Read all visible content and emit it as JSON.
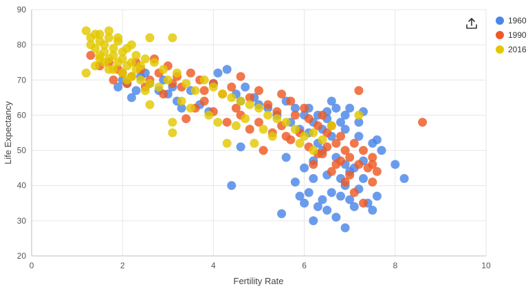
{
  "toolbar": {
    "export_icon": "share-upload-icon"
  },
  "chart_data": {
    "type": "scatter",
    "xlabel": "Fertility Rate",
    "ylabel": "Life Expectancy",
    "xlim": [
      0,
      10
    ],
    "ylim": [
      20,
      90
    ],
    "xticks": [
      "0",
      "2",
      "4",
      "6",
      "8",
      "10"
    ],
    "yticks": [
      "20",
      "30",
      "40",
      "50",
      "60",
      "70",
      "80",
      "90"
    ],
    "grid": true,
    "legend_position": "right",
    "series": [
      {
        "name": "1960",
        "color": "#4A86E8",
        "points": [
          [
            1.9,
            68
          ],
          [
            2.0,
            70
          ],
          [
            2.1,
            69
          ],
          [
            2.3,
            67
          ],
          [
            2.4,
            71
          ],
          [
            2.2,
            65
          ],
          [
            2.6,
            69
          ],
          [
            2.8,
            67
          ],
          [
            2.5,
            72
          ],
          [
            2.9,
            70
          ],
          [
            3.0,
            66
          ],
          [
            3.1,
            68
          ],
          [
            3.2,
            64
          ],
          [
            3.3,
            62
          ],
          [
            3.5,
            67
          ],
          [
            3.7,
            63
          ],
          [
            3.9,
            61
          ],
          [
            4.1,
            72
          ],
          [
            4.3,
            73
          ],
          [
            4.0,
            69
          ],
          [
            4.5,
            66
          ],
          [
            4.7,
            68
          ],
          [
            4.6,
            64
          ],
          [
            4.9,
            65
          ],
          [
            5.0,
            63
          ],
          [
            5.2,
            62
          ],
          [
            5.4,
            60
          ],
          [
            5.6,
            64
          ],
          [
            5.8,
            62
          ],
          [
            5.7,
            58
          ],
          [
            5.9,
            56
          ],
          [
            6.0,
            60
          ],
          [
            6.1,
            62
          ],
          [
            6.2,
            58
          ],
          [
            6.3,
            60
          ],
          [
            6.5,
            61
          ],
          [
            6.4,
            56
          ],
          [
            6.7,
            62
          ],
          [
            6.8,
            58
          ],
          [
            6.9,
            60
          ],
          [
            7.0,
            62
          ],
          [
            7.2,
            58
          ],
          [
            7.3,
            61
          ],
          [
            6.6,
            64
          ],
          [
            6.5,
            59
          ],
          [
            4.4,
            40
          ],
          [
            4.6,
            51
          ],
          [
            5.6,
            48
          ],
          [
            5.8,
            41
          ],
          [
            5.9,
            37
          ],
          [
            6.0,
            35
          ],
          [
            6.1,
            38
          ],
          [
            6.2,
            42
          ],
          [
            6.3,
            34
          ],
          [
            6.4,
            36
          ],
          [
            6.5,
            33
          ],
          [
            6.6,
            38
          ],
          [
            6.8,
            37
          ],
          [
            6.9,
            40
          ],
          [
            7.0,
            36
          ],
          [
            7.1,
            34
          ],
          [
            7.2,
            39
          ],
          [
            7.3,
            42
          ],
          [
            7.4,
            35
          ],
          [
            7.5,
            33
          ],
          [
            7.6,
            37
          ],
          [
            7.7,
            50
          ],
          [
            7.5,
            52
          ],
          [
            6.9,
            28
          ],
          [
            6.2,
            30
          ],
          [
            5.5,
            32
          ],
          [
            6.7,
            31
          ],
          [
            8.0,
            46
          ],
          [
            8.2,
            42
          ],
          [
            7.0,
            44
          ],
          [
            6.9,
            46
          ],
          [
            6.7,
            48
          ],
          [
            6.4,
            50
          ],
          [
            6.2,
            47
          ],
          [
            6.0,
            45
          ],
          [
            6.5,
            43
          ],
          [
            6.8,
            42
          ],
          [
            7.1,
            45
          ],
          [
            7.3,
            47
          ],
          [
            7.6,
            53
          ],
          [
            7.2,
            54
          ],
          [
            6.9,
            56
          ],
          [
            6.6,
            54
          ],
          [
            6.3,
            52
          ],
          [
            6.1,
            55
          ]
        ]
      },
      {
        "name": "1990",
        "color": "#EE5A24",
        "points": [
          [
            1.3,
            77
          ],
          [
            1.5,
            74
          ],
          [
            1.7,
            75
          ],
          [
            1.9,
            73
          ],
          [
            2.0,
            72
          ],
          [
            2.2,
            71
          ],
          [
            2.4,
            73
          ],
          [
            2.6,
            70
          ],
          [
            2.8,
            72
          ],
          [
            3.0,
            74
          ],
          [
            3.2,
            71
          ],
          [
            3.3,
            68
          ],
          [
            3.5,
            72
          ],
          [
            3.7,
            70
          ],
          [
            3.8,
            67
          ],
          [
            4.0,
            69
          ],
          [
            4.2,
            66
          ],
          [
            4.4,
            68
          ],
          [
            4.6,
            71
          ],
          [
            4.8,
            65
          ],
          [
            5.0,
            67
          ],
          [
            5.2,
            63
          ],
          [
            5.4,
            61
          ],
          [
            5.5,
            66
          ],
          [
            5.7,
            64
          ],
          [
            5.8,
            60
          ],
          [
            6.0,
            62
          ],
          [
            6.1,
            59
          ],
          [
            6.3,
            57
          ],
          [
            6.4,
            60
          ],
          [
            6.5,
            55
          ],
          [
            6.6,
            57
          ],
          [
            6.7,
            52
          ],
          [
            6.8,
            54
          ],
          [
            6.9,
            50
          ],
          [
            7.0,
            48
          ],
          [
            7.1,
            52
          ],
          [
            7.2,
            46
          ],
          [
            7.3,
            50
          ],
          [
            7.4,
            45
          ],
          [
            7.5,
            48
          ],
          [
            7.6,
            44
          ],
          [
            7.2,
            67
          ],
          [
            8.6,
            58
          ],
          [
            7.5,
            41
          ],
          [
            6.2,
            46
          ],
          [
            6.4,
            49
          ],
          [
            6.6,
            44
          ],
          [
            6.8,
            47
          ],
          [
            7.0,
            43
          ],
          [
            3.4,
            59
          ],
          [
            3.6,
            62
          ],
          [
            3.8,
            64
          ],
          [
            4.0,
            61
          ],
          [
            4.3,
            58
          ],
          [
            4.6,
            60
          ],
          [
            4.8,
            56
          ],
          [
            5.0,
            58
          ],
          [
            5.3,
            55
          ],
          [
            5.5,
            57
          ],
          [
            5.7,
            53
          ],
          [
            5.9,
            55
          ],
          [
            6.1,
            51
          ],
          [
            6.3,
            49
          ],
          [
            6.5,
            51
          ],
          [
            6.7,
            46
          ],
          [
            6.9,
            41
          ],
          [
            7.1,
            38
          ],
          [
            7.3,
            35
          ],
          [
            7.5,
            46
          ],
          [
            1.8,
            70
          ],
          [
            2.1,
            69
          ],
          [
            2.3,
            75
          ],
          [
            2.5,
            68
          ],
          [
            2.7,
            76
          ],
          [
            2.9,
            66
          ],
          [
            3.1,
            69
          ],
          [
            4.5,
            62
          ],
          [
            5.1,
            50
          ],
          [
            5.6,
            54
          ]
        ]
      },
      {
        "name": "2016",
        "color": "#E2C800",
        "points": [
          [
            1.2,
            84
          ],
          [
            1.3,
            82
          ],
          [
            1.4,
            83
          ],
          [
            1.5,
            81
          ],
          [
            1.6,
            80
          ],
          [
            1.7,
            82
          ],
          [
            1.8,
            79
          ],
          [
            1.9,
            81
          ],
          [
            2.0,
            78
          ],
          [
            1.4,
            79
          ],
          [
            1.5,
            77
          ],
          [
            1.6,
            78
          ],
          [
            1.7,
            76
          ],
          [
            1.8,
            77
          ],
          [
            1.9,
            75
          ],
          [
            2.0,
            76
          ],
          [
            2.1,
            74
          ],
          [
            2.2,
            75
          ],
          [
            2.3,
            73
          ],
          [
            2.4,
            74
          ],
          [
            1.3,
            80
          ],
          [
            1.5,
            83
          ],
          [
            1.7,
            84
          ],
          [
            1.9,
            82
          ],
          [
            2.1,
            79
          ],
          [
            2.3,
            77
          ],
          [
            2.5,
            76
          ],
          [
            2.7,
            75
          ],
          [
            2.9,
            73
          ],
          [
            1.6,
            75
          ],
          [
            1.8,
            73
          ],
          [
            2.0,
            72
          ],
          [
            2.2,
            71
          ],
          [
            2.4,
            70
          ],
          [
            2.6,
            69
          ],
          [
            2.8,
            68
          ],
          [
            3.0,
            70
          ],
          [
            3.2,
            72
          ],
          [
            3.4,
            69
          ],
          [
            3.6,
            67
          ],
          [
            3.8,
            70
          ],
          [
            4.0,
            68
          ],
          [
            4.2,
            66
          ],
          [
            4.4,
            65
          ],
          [
            4.6,
            64
          ],
          [
            4.8,
            63
          ],
          [
            5.0,
            62
          ],
          [
            5.2,
            60
          ],
          [
            5.4,
            59
          ],
          [
            5.6,
            58
          ],
          [
            5.8,
            56
          ],
          [
            6.0,
            54
          ],
          [
            6.2,
            55
          ],
          [
            6.4,
            53
          ],
          [
            6.6,
            57
          ],
          [
            7.2,
            60
          ],
          [
            3.1,
            58
          ],
          [
            3.1,
            55
          ],
          [
            4.3,
            52
          ],
          [
            4.9,
            52
          ],
          [
            2.6,
            82
          ],
          [
            3.1,
            82
          ],
          [
            1.2,
            72
          ],
          [
            1.4,
            74
          ],
          [
            2.2,
            80
          ],
          [
            2.6,
            63
          ],
          [
            3.3,
            64
          ],
          [
            3.5,
            62
          ],
          [
            3.9,
            60
          ],
          [
            4.1,
            58
          ],
          [
            4.5,
            57
          ],
          [
            4.7,
            59
          ],
          [
            5.1,
            56
          ],
          [
            5.3,
            54
          ],
          [
            5.9,
            52
          ],
          [
            6.2,
            50
          ],
          [
            1.5,
            76
          ],
          [
            1.7,
            73
          ],
          [
            2.1,
            70
          ],
          [
            2.5,
            67
          ]
        ]
      }
    ]
  }
}
